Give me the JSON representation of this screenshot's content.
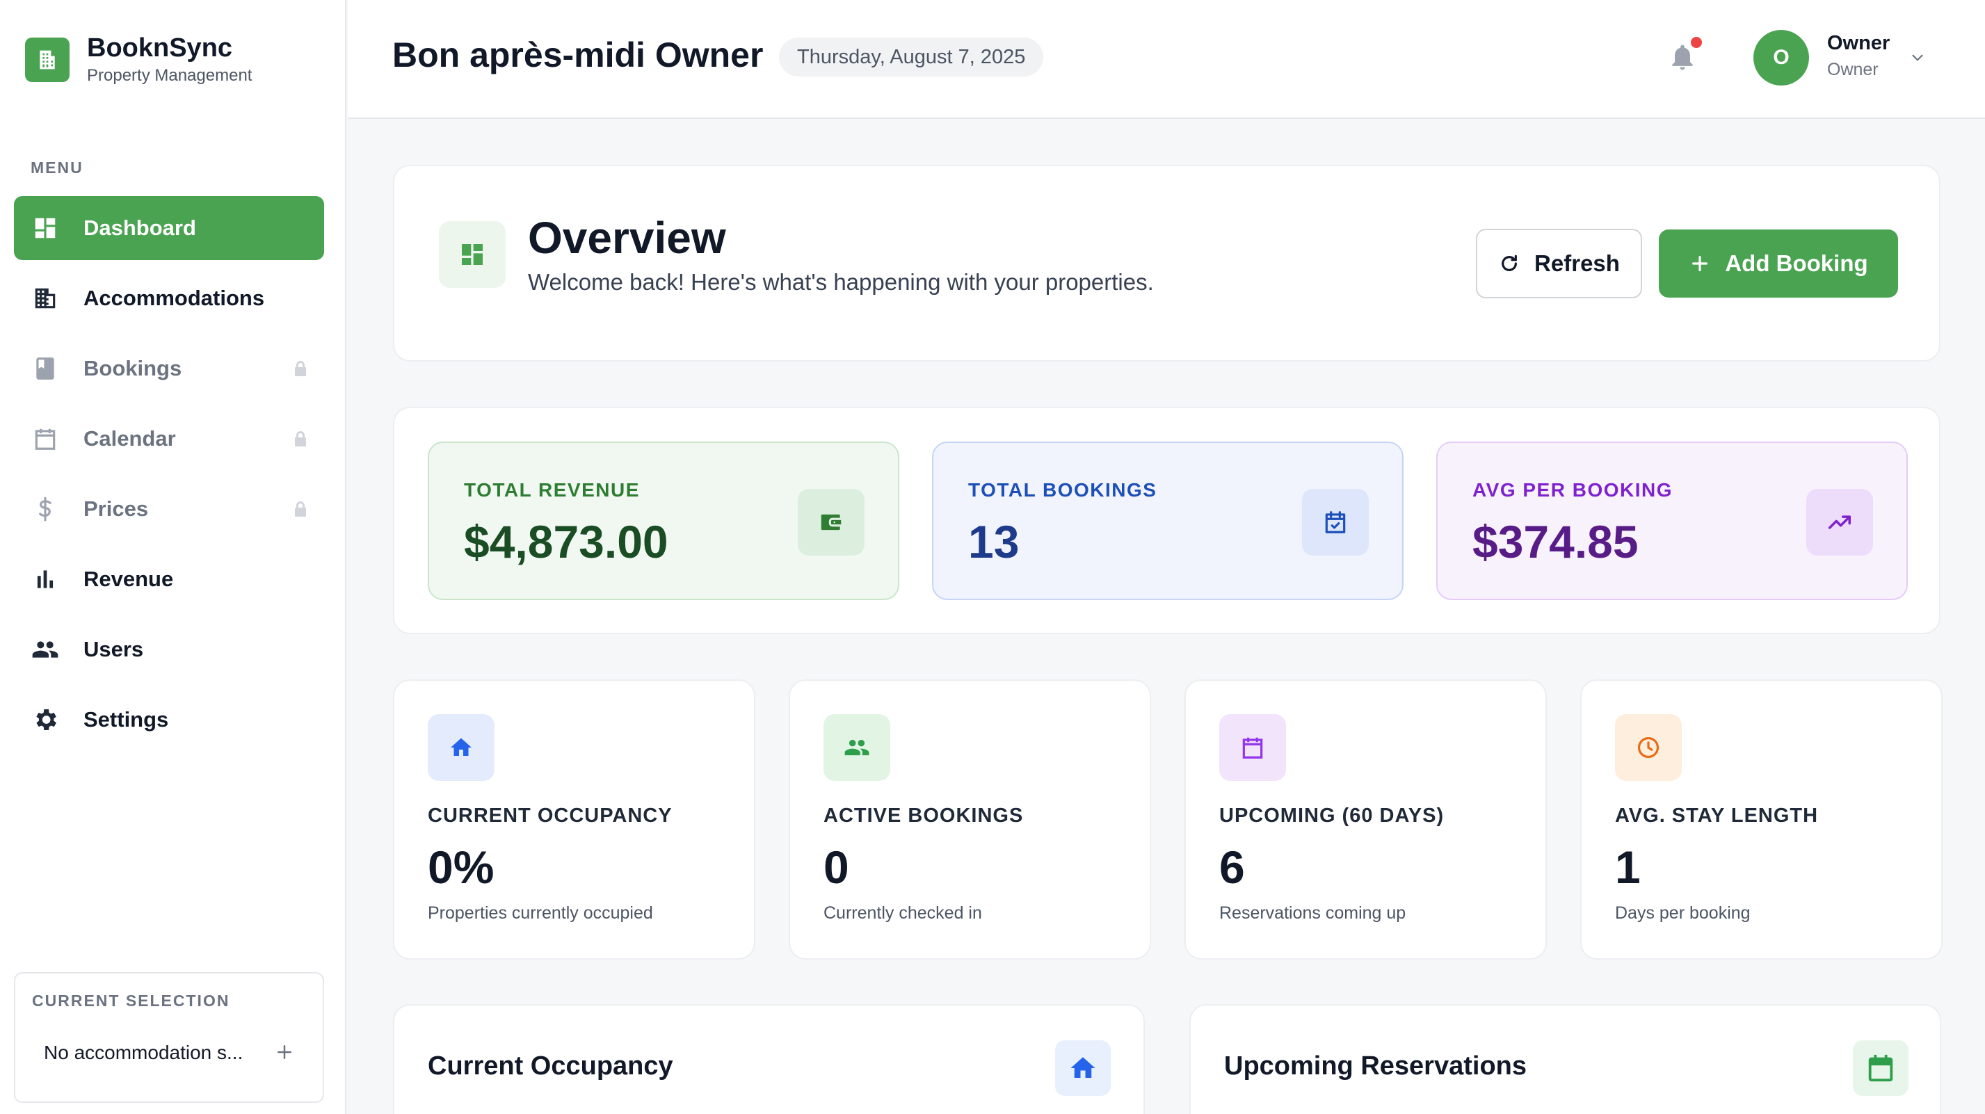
{
  "brand": {
    "name": "BooknSync",
    "subtitle": "Property Management",
    "icon": "building-icon",
    "color": "#4aa351"
  },
  "sidebar": {
    "menu_label": "MENU",
    "items": [
      {
        "label": "Dashboard",
        "icon": "dashboard-icon",
        "active": true,
        "locked": false
      },
      {
        "label": "Accommodations",
        "icon": "building-icon",
        "active": false,
        "locked": false
      },
      {
        "label": "Bookings",
        "icon": "book-icon",
        "active": false,
        "locked": true
      },
      {
        "label": "Calendar",
        "icon": "calendar-icon",
        "active": false,
        "locked": true
      },
      {
        "label": "Prices",
        "icon": "dollar-icon",
        "active": false,
        "locked": true
      },
      {
        "label": "Revenue",
        "icon": "bar-chart-icon",
        "active": false,
        "locked": false
      },
      {
        "label": "Users",
        "icon": "users-icon",
        "active": false,
        "locked": false
      },
      {
        "label": "Settings",
        "icon": "gear-icon",
        "active": false,
        "locked": false
      }
    ],
    "selection": {
      "label": "CURRENT SELECTION",
      "value": "No accommodation s..."
    }
  },
  "header": {
    "greeting": "Bon après-midi Owner",
    "date": "Thursday, August 7, 2025",
    "user": {
      "initial": "O",
      "name": "Owner",
      "role": "Owner"
    }
  },
  "overview": {
    "title": "Overview",
    "subtitle": "Welcome back! Here's what's happening with your properties.",
    "refresh_label": "Refresh",
    "add_label": "Add Booking"
  },
  "totals": [
    {
      "label": "TOTAL REVENUE",
      "value": "$4,873.00",
      "icon": "wallet-icon",
      "accent": "#2e7d32"
    },
    {
      "label": "TOTAL BOOKINGS",
      "value": "13",
      "icon": "calendar-check-icon",
      "accent": "#1d4fb8"
    },
    {
      "label": "AVG PER BOOKING",
      "value": "$374.85",
      "icon": "trending-up-icon",
      "accent": "#7e22ce"
    }
  ],
  "stats": [
    {
      "label": "CURRENT OCCUPANCY",
      "value": "0%",
      "sub": "Properties currently occupied",
      "icon": "home-icon"
    },
    {
      "label": "ACTIVE BOOKINGS",
      "value": "0",
      "sub": "Currently checked in",
      "icon": "users-icon"
    },
    {
      "label": "UPCOMING (60 DAYS)",
      "value": "6",
      "sub": "Reservations coming up",
      "icon": "calendar-icon"
    },
    {
      "label": "AVG. STAY LENGTH",
      "value": "1",
      "sub": "Days per booking",
      "icon": "clock-icon"
    }
  ],
  "panels": [
    {
      "title": "Current Occupancy",
      "icon": "home-icon"
    },
    {
      "title": "Upcoming Reservations",
      "icon": "calendar-icon"
    }
  ]
}
